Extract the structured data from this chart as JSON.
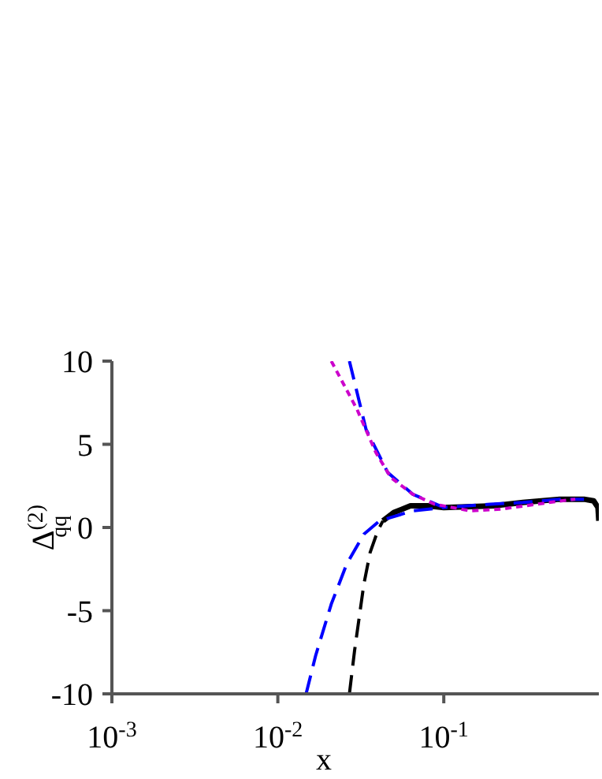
{
  "chart_data": {
    "type": "line",
    "xlabel": "x",
    "ylabel": "Δ$^{(2)}$$_{qq}$",
    "log": "x",
    "xlim": [
      0.001,
      0.86
    ],
    "ylim": [
      -10,
      10
    ],
    "xticks": [
      {
        "value": 0.001,
        "label": "10$^{-3}$"
      },
      {
        "value": 0.01,
        "label": "10$^{-2}$"
      },
      {
        "value": 0.1,
        "label": "10$^{-1}$"
      }
    ],
    "yticks": [
      -10,
      -5,
      0,
      5,
      10
    ],
    "series": [
      {
        "color": "#000000",
        "line_style": "solid",
        "x": [
          0.043,
          0.05,
          0.063,
          0.08,
          0.1,
          0.2,
          0.3,
          0.5,
          0.7,
          0.8,
          0.85,
          0.86
        ],
        "values": [
          0.4,
          0.9,
          1.3,
          1.3,
          1.2,
          1.3,
          1.5,
          1.7,
          1.7,
          1.6,
          1.2,
          0.4
        ]
      },
      {
        "color": "#000000",
        "line_style": "dashed",
        "x": [
          0.027,
          0.029,
          0.033,
          0.036,
          0.04,
          0.043
        ],
        "values": [
          -10,
          -7.4,
          -3.4,
          -1.5,
          -0.2,
          0.4
        ]
      },
      {
        "color": "#0000ff",
        "line_style": "dashed",
        "x": [
          0.027,
          0.034,
          0.046,
          0.065,
          0.1,
          0.19,
          0.3,
          0.5,
          0.7
        ],
        "values": [
          10,
          5.9,
          3.3,
          2.0,
          1.2,
          1.4,
          1.5,
          1.7,
          1.7
        ]
      },
      {
        "color": "#0000ff",
        "line_style": "dashed",
        "x": [
          0.0148,
          0.0169,
          0.021,
          0.026,
          0.033,
          0.041,
          0.065,
          0.1
        ],
        "values": [
          -10,
          -7.7,
          -4.6,
          -2.2,
          -0.4,
          0.4,
          1.0,
          1.2
        ]
      },
      {
        "color": "#cc00cc",
        "line_style": "dotted",
        "x": [
          0.021,
          0.03,
          0.039,
          0.048,
          0.065,
          0.088,
          0.145,
          0.22,
          0.43,
          0.62
        ],
        "values": [
          10,
          7.1,
          4.5,
          3.0,
          2.0,
          1.4,
          1.0,
          1.1,
          1.5,
          1.7
        ]
      }
    ]
  }
}
